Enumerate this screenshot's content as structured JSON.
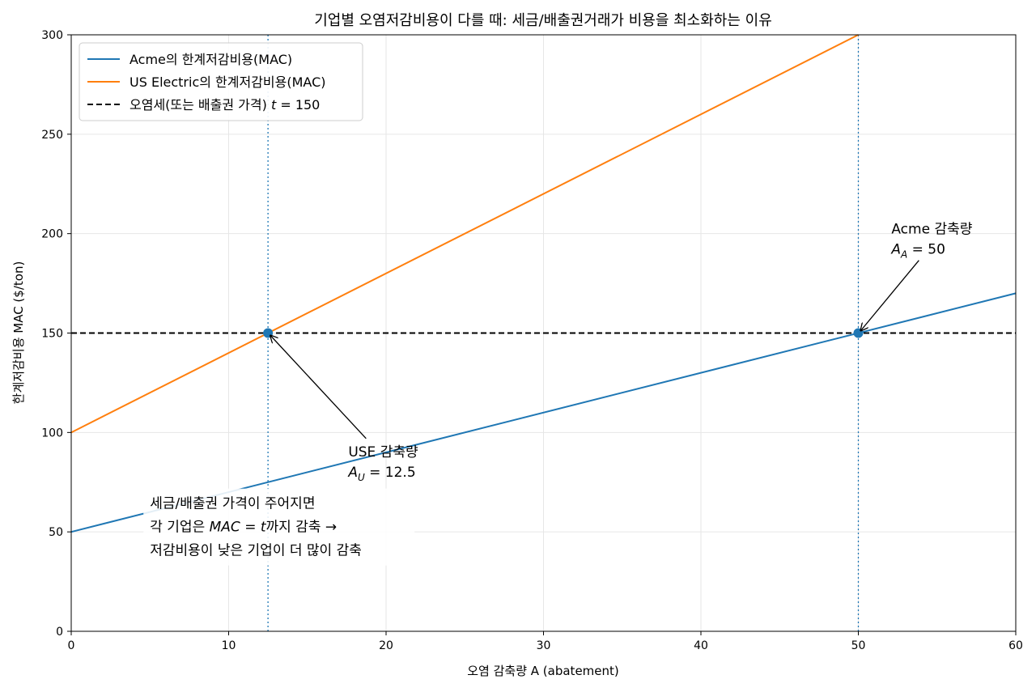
{
  "chart_data": {
    "type": "line",
    "title": "기업별 오염저감비용이 다를 때: 세금/배출권거래가 비용을 최소화하는 이유",
    "xlabel": "오염 감축량 A (abatement)",
    "ylabel": "한계저감비용 MAC ($/ton)",
    "xlim": [
      0,
      60
    ],
    "ylim": [
      0,
      300
    ],
    "xticks": [
      0,
      10,
      20,
      30,
      40,
      50,
      60
    ],
    "yticks": [
      0,
      50,
      100,
      150,
      200,
      250,
      300
    ],
    "grid": true,
    "legend_position": "top-left",
    "series": [
      {
        "name": "Acme의 한계저감비용(MAC)",
        "color": "#1f77b4",
        "style": "solid",
        "x": [
          0,
          60
        ],
        "y": [
          50,
          170
        ]
      },
      {
        "name": "US Electric의 한계저감비용(MAC)",
        "color": "#ff7f0e",
        "style": "solid",
        "x": [
          0,
          50
        ],
        "y": [
          100,
          300
        ]
      },
      {
        "name": "오염세(또는 배출권 가격) t = 150",
        "color": "#000000",
        "style": "dashed",
        "x": [
          0,
          60
        ],
        "y": [
          150,
          150
        ]
      }
    ],
    "legend_entries": [
      {
        "text": "Acme의 한계저감비용(MAC)"
      },
      {
        "text": "US Electric의 한계저감비용(MAC)"
      },
      {
        "prefix": "오염세(또는 배출권 가격) ",
        "math_var": "t",
        "math_rest": " = 150"
      }
    ],
    "vlines": [
      {
        "x": 12.5,
        "color": "#1f77b4",
        "style": "dotted"
      },
      {
        "x": 50,
        "color": "#1f77b4",
        "style": "dotted"
      }
    ],
    "points": [
      {
        "x": 12.5,
        "y": 150,
        "color": "#1f77b4"
      },
      {
        "x": 50,
        "y": 150,
        "color": "#1f77b4"
      }
    ],
    "annotations": [
      {
        "line1": "USE 감축량",
        "math_var": "A",
        "math_sub": "U",
        "math_rest": " = 12.5",
        "target": [
          12.5,
          150
        ],
        "text_at": [
          17.6,
          88
        ]
      },
      {
        "line1": "Acme 감축량",
        "math_var": "A",
        "math_sub": "A",
        "math_rest": " = 50",
        "target": [
          50,
          150
        ],
        "text_at": [
          52.1,
          200
        ]
      }
    ],
    "note": {
      "line1": "세금/배출권 가격이 주어지면",
      "line2_pre": "각 기업은 ",
      "line2_math": "MAC",
      "line2_eq": " = ",
      "line2_var": "t",
      "line2_post": "까지 감축 →",
      "line3": "저감비용이 낮은 기업이 더 많이 감축",
      "text_at": [
        5,
        62
      ]
    }
  }
}
